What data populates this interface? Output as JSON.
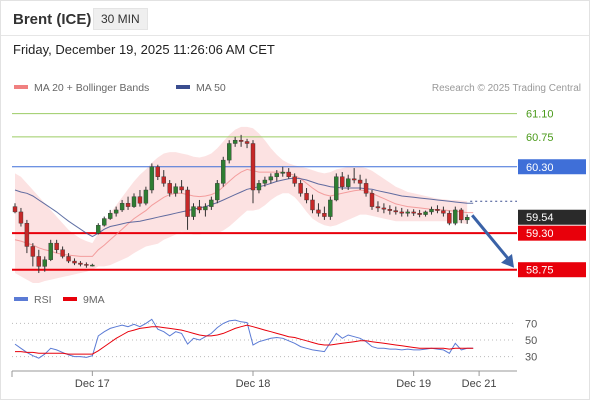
{
  "header": {
    "instrument": "Brent (ICE)",
    "interval": "30 MIN",
    "datetime": "Friday, December 19, 2025 11:26:06 AM CET"
  },
  "colors": {
    "candle_up": "#2e7d32",
    "candle_down": "#c62828",
    "bollinger_fill": "#fbd8d8",
    "ma20_line": "#f08080",
    "ma50_line": "#3a4d8f",
    "resistance_line": "#9ccc65",
    "pivot_line": "#3f6fd8",
    "support_line": "#e8000b",
    "arrow": "#3a62a7",
    "rsi_line": "#5b7bd5",
    "rsi_ma_line": "#e8000b",
    "price_tag": "#2a2a2a"
  },
  "chart_data": [
    {
      "type": "candlestick",
      "legend": [
        {
          "label": "MA 20 + Bollinger Bands",
          "color": "#f08080"
        },
        {
          "label": "MA 50",
          "color": "#3a4d8f"
        }
      ],
      "credit": "Research © 2025 Trading Central",
      "x_ticks": [
        "Dec 17",
        "Dec 18",
        "Dec 19",
        "Dec 21"
      ],
      "x_tick_index": [
        13,
        40,
        67,
        78
      ],
      "ylim": [
        58.55,
        61.35
      ],
      "levels": [
        {
          "value": 61.1,
          "label": "61.10",
          "kind": "resistance"
        },
        {
          "value": 60.75,
          "label": "60.75",
          "kind": "resistance"
        },
        {
          "value": 60.3,
          "label": "60.30",
          "kind": "pivot"
        },
        {
          "value": 59.3,
          "label": "59.30",
          "kind": "support"
        },
        {
          "value": 58.75,
          "label": "58.75",
          "kind": "support"
        }
      ],
      "last_price": 59.54,
      "last_price_label": "59.54",
      "forecast_target": 58.75,
      "candles": [
        {
          "o": 59.7,
          "h": 59.75,
          "l": 59.6,
          "c": 59.62
        },
        {
          "o": 59.62,
          "h": 59.68,
          "l": 59.4,
          "c": 59.45
        },
        {
          "o": 59.45,
          "h": 59.5,
          "l": 59.0,
          "c": 59.1
        },
        {
          "o": 59.1,
          "h": 59.15,
          "l": 58.8,
          "c": 58.95
        },
        {
          "o": 58.95,
          "h": 59.05,
          "l": 58.7,
          "c": 58.8
        },
        {
          "o": 58.8,
          "h": 58.95,
          "l": 58.72,
          "c": 58.9
        },
        {
          "o": 58.9,
          "h": 59.2,
          "l": 58.88,
          "c": 59.15
        },
        {
          "o": 59.15,
          "h": 59.2,
          "l": 59.0,
          "c": 59.05
        },
        {
          "o": 59.05,
          "h": 59.1,
          "l": 58.92,
          "c": 58.95
        },
        {
          "o": 58.95,
          "h": 59.0,
          "l": 58.85,
          "c": 58.88
        },
        {
          "o": 58.88,
          "h": 58.92,
          "l": 58.82,
          "c": 58.85
        },
        {
          "o": 58.85,
          "h": 58.88,
          "l": 58.8,
          "c": 58.83
        },
        {
          "o": 58.83,
          "h": 58.86,
          "l": 58.78,
          "c": 58.82
        },
        {
          "o": 58.82,
          "h": 58.84,
          "l": 58.8,
          "c": 58.82
        },
        {
          "o": 59.3,
          "h": 59.45,
          "l": 59.28,
          "c": 59.42
        },
        {
          "o": 59.42,
          "h": 59.55,
          "l": 59.4,
          "c": 59.52
        },
        {
          "o": 59.52,
          "h": 59.65,
          "l": 59.5,
          "c": 59.6
        },
        {
          "o": 59.6,
          "h": 59.7,
          "l": 59.55,
          "c": 59.65
        },
        {
          "o": 59.65,
          "h": 59.8,
          "l": 59.62,
          "c": 59.75
        },
        {
          "o": 59.75,
          "h": 59.85,
          "l": 59.65,
          "c": 59.7
        },
        {
          "o": 59.7,
          "h": 59.9,
          "l": 59.68,
          "c": 59.85
        },
        {
          "o": 59.85,
          "h": 59.95,
          "l": 59.7,
          "c": 59.75
        },
        {
          "o": 59.75,
          "h": 60.0,
          "l": 59.72,
          "c": 59.95
        },
        {
          "o": 59.95,
          "h": 60.35,
          "l": 59.9,
          "c": 60.3
        },
        {
          "o": 60.3,
          "h": 60.33,
          "l": 60.1,
          "c": 60.15
        },
        {
          "o": 60.15,
          "h": 60.25,
          "l": 60.0,
          "c": 60.05
        },
        {
          "o": 60.05,
          "h": 60.1,
          "l": 59.85,
          "c": 59.9
        },
        {
          "o": 59.9,
          "h": 60.05,
          "l": 59.85,
          "c": 60.0
        },
        {
          "o": 60.0,
          "h": 60.1,
          "l": 59.9,
          "c": 59.95
        },
        {
          "o": 59.95,
          "h": 60.0,
          "l": 59.35,
          "c": 59.55
        },
        {
          "o": 59.55,
          "h": 59.75,
          "l": 59.5,
          "c": 59.7
        },
        {
          "o": 59.7,
          "h": 59.8,
          "l": 59.6,
          "c": 59.65
        },
        {
          "o": 59.65,
          "h": 59.75,
          "l": 59.55,
          "c": 59.7
        },
        {
          "o": 59.7,
          "h": 59.85,
          "l": 59.65,
          "c": 59.8
        },
        {
          "o": 59.8,
          "h": 60.1,
          "l": 59.75,
          "c": 60.05
        },
        {
          "o": 60.05,
          "h": 60.45,
          "l": 60.0,
          "c": 60.4
        },
        {
          "o": 60.4,
          "h": 60.7,
          "l": 60.35,
          "c": 60.65
        },
        {
          "o": 60.65,
          "h": 60.75,
          "l": 60.6,
          "c": 60.7
        },
        {
          "o": 60.7,
          "h": 60.78,
          "l": 60.6,
          "c": 60.68
        },
        {
          "o": 60.68,
          "h": 60.72,
          "l": 60.58,
          "c": 60.65
        },
        {
          "o": 60.65,
          "h": 60.7,
          "l": 59.75,
          "c": 59.95
        },
        {
          "o": 59.95,
          "h": 60.1,
          "l": 59.9,
          "c": 60.05
        },
        {
          "o": 60.05,
          "h": 60.15,
          "l": 60.0,
          "c": 60.1
        },
        {
          "o": 60.1,
          "h": 60.2,
          "l": 60.05,
          "c": 60.15
        },
        {
          "o": 60.15,
          "h": 60.25,
          "l": 60.08,
          "c": 60.2
        },
        {
          "o": 60.2,
          "h": 60.3,
          "l": 60.15,
          "c": 60.22
        },
        {
          "o": 60.22,
          "h": 60.28,
          "l": 60.12,
          "c": 60.15
        },
        {
          "o": 60.15,
          "h": 60.2,
          "l": 60.0,
          "c": 60.05
        },
        {
          "o": 60.05,
          "h": 60.1,
          "l": 59.85,
          "c": 59.9
        },
        {
          "o": 59.9,
          "h": 59.98,
          "l": 59.75,
          "c": 59.8
        },
        {
          "o": 59.8,
          "h": 59.88,
          "l": 59.6,
          "c": 59.65
        },
        {
          "o": 59.65,
          "h": 59.75,
          "l": 59.55,
          "c": 59.6
        },
        {
          "o": 59.6,
          "h": 59.7,
          "l": 59.5,
          "c": 59.55
        },
        {
          "o": 59.55,
          "h": 59.85,
          "l": 59.5,
          "c": 59.8
        },
        {
          "o": 59.8,
          "h": 60.2,
          "l": 59.78,
          "c": 60.15
        },
        {
          "o": 60.15,
          "h": 60.22,
          "l": 59.95,
          "c": 60.0
        },
        {
          "o": 60.0,
          "h": 60.18,
          "l": 59.95,
          "c": 60.12
        },
        {
          "o": 60.12,
          "h": 60.28,
          "l": 60.05,
          "c": 60.1
        },
        {
          "o": 60.1,
          "h": 60.18,
          "l": 59.95,
          "c": 60.05
        },
        {
          "o": 60.05,
          "h": 60.12,
          "l": 59.85,
          "c": 59.9
        },
        {
          "o": 59.9,
          "h": 59.95,
          "l": 59.65,
          "c": 59.7
        },
        {
          "o": 59.7,
          "h": 59.78,
          "l": 59.62,
          "c": 59.68
        },
        {
          "o": 59.68,
          "h": 59.75,
          "l": 59.6,
          "c": 59.66
        },
        {
          "o": 59.66,
          "h": 59.72,
          "l": 59.58,
          "c": 59.64
        },
        {
          "o": 59.64,
          "h": 59.7,
          "l": 59.58,
          "c": 59.62
        },
        {
          "o": 59.62,
          "h": 59.68,
          "l": 59.55,
          "c": 59.6
        },
        {
          "o": 59.6,
          "h": 59.66,
          "l": 59.55,
          "c": 59.62
        },
        {
          "o": 59.62,
          "h": 59.66,
          "l": 59.56,
          "c": 59.6
        },
        {
          "o": 59.6,
          "h": 59.65,
          "l": 59.54,
          "c": 59.58
        },
        {
          "o": 59.58,
          "h": 59.64,
          "l": 59.55,
          "c": 59.62
        },
        {
          "o": 59.62,
          "h": 59.7,
          "l": 59.58,
          "c": 59.66
        },
        {
          "o": 59.66,
          "h": 59.72,
          "l": 59.6,
          "c": 59.64
        },
        {
          "o": 59.64,
          "h": 59.7,
          "l": 59.55,
          "c": 59.6
        },
        {
          "o": 59.6,
          "h": 59.64,
          "l": 59.42,
          "c": 59.45
        },
        {
          "o": 59.45,
          "h": 59.7,
          "l": 59.42,
          "c": 59.65
        },
        {
          "o": 59.65,
          "h": 59.68,
          "l": 59.45,
          "c": 59.5
        },
        {
          "o": 59.5,
          "h": 59.58,
          "l": 59.44,
          "c": 59.54
        }
      ],
      "ma20": [
        59.2,
        59.18,
        59.15,
        59.12,
        59.08,
        59.05,
        59.03,
        59.0,
        58.98,
        58.97,
        58.96,
        58.95,
        58.95,
        58.95,
        59.05,
        59.12,
        59.2,
        59.28,
        59.36,
        59.44,
        59.52,
        59.58,
        59.64,
        59.72,
        59.78,
        59.84,
        59.88,
        59.9,
        59.9,
        59.88,
        59.86,
        59.85,
        59.86,
        59.88,
        59.92,
        60.0,
        60.08,
        60.16,
        60.22,
        60.26,
        60.24,
        60.22,
        60.22,
        60.22,
        60.22,
        60.22,
        60.2,
        60.17,
        60.12,
        60.05,
        59.98,
        59.92,
        59.88,
        59.86,
        59.88,
        59.9,
        59.92,
        59.94,
        59.95,
        59.94,
        59.9,
        59.86,
        59.82,
        59.78,
        59.74,
        59.72,
        59.7,
        59.69,
        59.68,
        59.67,
        59.66,
        59.65,
        59.65,
        59.64,
        59.63,
        59.62,
        59.61,
        59.61
      ],
      "bb_upper": [
        60.2,
        60.15,
        60.05,
        59.95,
        59.85,
        59.75,
        59.65,
        59.55,
        59.45,
        59.35,
        59.28,
        59.22,
        59.18,
        59.15,
        59.3,
        59.45,
        59.6,
        59.72,
        59.84,
        59.96,
        60.08,
        60.18,
        60.26,
        60.36,
        60.44,
        60.5,
        60.52,
        60.52,
        60.5,
        60.48,
        60.45,
        60.44,
        60.46,
        60.5,
        60.58,
        60.68,
        60.78,
        60.86,
        60.9,
        60.9,
        60.88,
        60.8,
        60.7,
        60.58,
        60.48,
        60.4,
        60.35,
        60.32,
        60.3,
        60.28,
        60.25,
        60.22,
        60.2,
        60.22,
        60.26,
        60.28,
        60.3,
        60.3,
        60.3,
        60.28,
        60.24,
        60.18,
        60.12,
        60.06,
        60.0,
        59.96,
        59.92,
        59.9,
        59.88,
        59.86,
        59.84,
        59.82,
        59.81,
        59.8,
        59.8,
        59.79,
        59.78,
        59.78
      ],
      "bb_lower": [
        58.7,
        58.65,
        58.6,
        58.55,
        58.55,
        58.58,
        58.6,
        58.62,
        58.64,
        58.66,
        58.68,
        58.7,
        58.72,
        58.75,
        58.8,
        58.8,
        58.82,
        58.86,
        58.9,
        58.94,
        59.0,
        59.05,
        59.1,
        59.12,
        59.14,
        59.2,
        59.24,
        59.28,
        59.32,
        59.3,
        59.28,
        59.28,
        59.3,
        59.3,
        59.3,
        59.34,
        59.4,
        59.48,
        59.56,
        59.64,
        59.64,
        59.66,
        59.72,
        59.8,
        59.86,
        59.9,
        59.9,
        59.84,
        59.74,
        59.62,
        59.52,
        59.46,
        59.42,
        59.4,
        59.42,
        59.46,
        59.5,
        59.54,
        59.58,
        59.58,
        59.56,
        59.54,
        59.52,
        59.5,
        59.48,
        59.48,
        59.48,
        59.48,
        59.48,
        59.48,
        59.48,
        59.48,
        59.48,
        59.48,
        59.46,
        59.45,
        59.44,
        59.44
      ],
      "ma50": [
        59.95,
        59.92,
        59.9,
        59.86,
        59.8,
        59.74,
        59.68,
        59.62,
        59.55,
        59.48,
        59.42,
        59.36,
        59.3,
        59.25,
        59.3,
        59.36,
        59.4,
        59.42,
        59.44,
        59.46,
        59.47,
        59.48,
        59.5,
        59.52,
        59.54,
        59.56,
        59.58,
        59.6,
        59.62,
        59.64,
        59.66,
        59.68,
        59.7,
        59.73,
        59.76,
        59.8,
        59.84,
        59.88,
        59.92,
        59.96,
        59.98,
        60.0,
        60.02,
        60.05,
        60.08,
        60.1,
        60.12,
        60.13,
        60.12,
        60.1,
        60.07,
        60.04,
        60.02,
        60.0,
        59.99,
        59.98,
        59.98,
        59.98,
        59.98,
        59.97,
        59.96,
        59.94,
        59.92,
        59.9,
        59.88,
        59.86,
        59.85,
        59.84,
        59.83,
        59.82,
        59.81,
        59.8,
        59.79,
        59.78,
        59.77,
        59.76,
        59.75,
        59.75
      ]
    },
    {
      "type": "line",
      "legend": [
        {
          "label": "RSI",
          "color": "#5b7bd5"
        },
        {
          "label": "9MA",
          "color": "#e8000b"
        }
      ],
      "y_ticks": [
        70,
        50,
        30
      ],
      "ylim": [
        15,
        85
      ],
      "series": [
        {
          "name": "RSI",
          "values": [
            45,
            40,
            35,
            31,
            28,
            33,
            40,
            38,
            35,
            32,
            30,
            30,
            29,
            31,
            55,
            60,
            64,
            66,
            68,
            66,
            69,
            66,
            70,
            75,
            63,
            60,
            55,
            60,
            58,
            45,
            52,
            50,
            54,
            58,
            65,
            70,
            73,
            74,
            72,
            71,
            44,
            48,
            50,
            52,
            53,
            52,
            49,
            46,
            42,
            40,
            38,
            37,
            36,
            47,
            58,
            52,
            56,
            54,
            52,
            48,
            42,
            40,
            40,
            39,
            39,
            38,
            39,
            38,
            38,
            39,
            40,
            39,
            38,
            34,
            46,
            38,
            40,
            40
          ]
        },
        {
          "name": "9MA",
          "values": [
            36,
            36,
            35,
            35,
            34,
            34,
            34,
            34,
            34,
            33,
            33,
            33,
            33,
            33,
            37,
            42,
            47,
            52,
            56,
            60,
            62,
            64,
            65,
            66,
            66,
            65,
            64,
            63,
            62,
            60,
            58,
            56,
            55,
            55,
            56,
            58,
            61,
            64,
            66,
            68,
            66,
            64,
            62,
            60,
            58,
            56,
            54,
            53,
            51,
            49,
            47,
            45,
            44,
            44,
            45,
            46,
            47,
            48,
            49,
            49,
            48,
            47,
            46,
            45,
            44,
            43,
            42,
            41,
            40,
            40,
            40,
            40,
            40,
            39,
            40,
            40,
            40,
            40
          ]
        }
      ]
    }
  ]
}
